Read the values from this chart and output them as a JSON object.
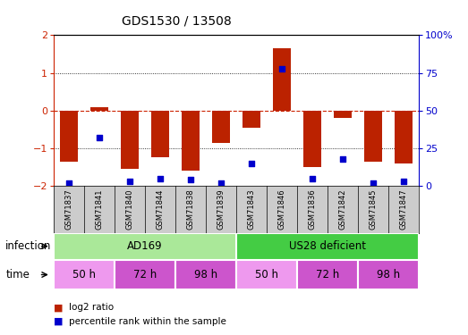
{
  "title": "GDS1530 / 13508",
  "samples": [
    "GSM71837",
    "GSM71841",
    "GSM71840",
    "GSM71844",
    "GSM71838",
    "GSM71839",
    "GSM71843",
    "GSM71846",
    "GSM71836",
    "GSM71842",
    "GSM71845",
    "GSM71847"
  ],
  "log2_ratio": [
    -1.35,
    0.08,
    -1.55,
    -1.25,
    -1.6,
    -0.85,
    -0.45,
    1.65,
    -1.5,
    -0.2,
    -1.35,
    -1.4
  ],
  "percentile_rank": [
    2,
    32,
    3,
    5,
    4,
    2,
    15,
    78,
    5,
    18,
    2,
    3
  ],
  "bar_color": "#bb2200",
  "dot_color": "#0000cc",
  "ylim": [
    -2,
    2
  ],
  "yticks_left": [
    -2,
    -1,
    0,
    1,
    2
  ],
  "yticks_right": [
    0,
    25,
    50,
    75,
    100
  ],
  "infection_labels": [
    {
      "label": "AD169",
      "start": 0,
      "end": 6,
      "color": "#aae899"
    },
    {
      "label": "US28 deficient",
      "start": 6,
      "end": 12,
      "color": "#44cc44"
    }
  ],
  "time_colors": [
    "#ee99ee",
    "#cc55cc",
    "#cc55cc",
    "#ee99ee",
    "#cc55cc",
    "#cc55cc"
  ],
  "time_labels": [
    "50 h",
    "72 h",
    "98 h",
    "50 h",
    "72 h",
    "98 h"
  ],
  "time_starts": [
    0,
    2,
    4,
    6,
    8,
    10
  ],
  "time_ends": [
    2,
    4,
    6,
    8,
    10,
    12
  ],
  "legend_items": [
    {
      "label": "log2 ratio",
      "color": "#bb2200"
    },
    {
      "label": "percentile rank within the sample",
      "color": "#0000cc"
    }
  ],
  "xlabel_infection": "infection",
  "xlabel_time": "time",
  "background_color": "#ffffff",
  "plot_bg_color": "#ffffff",
  "axis_label_color_left": "#cc2200",
  "axis_label_color_right": "#0000cc"
}
